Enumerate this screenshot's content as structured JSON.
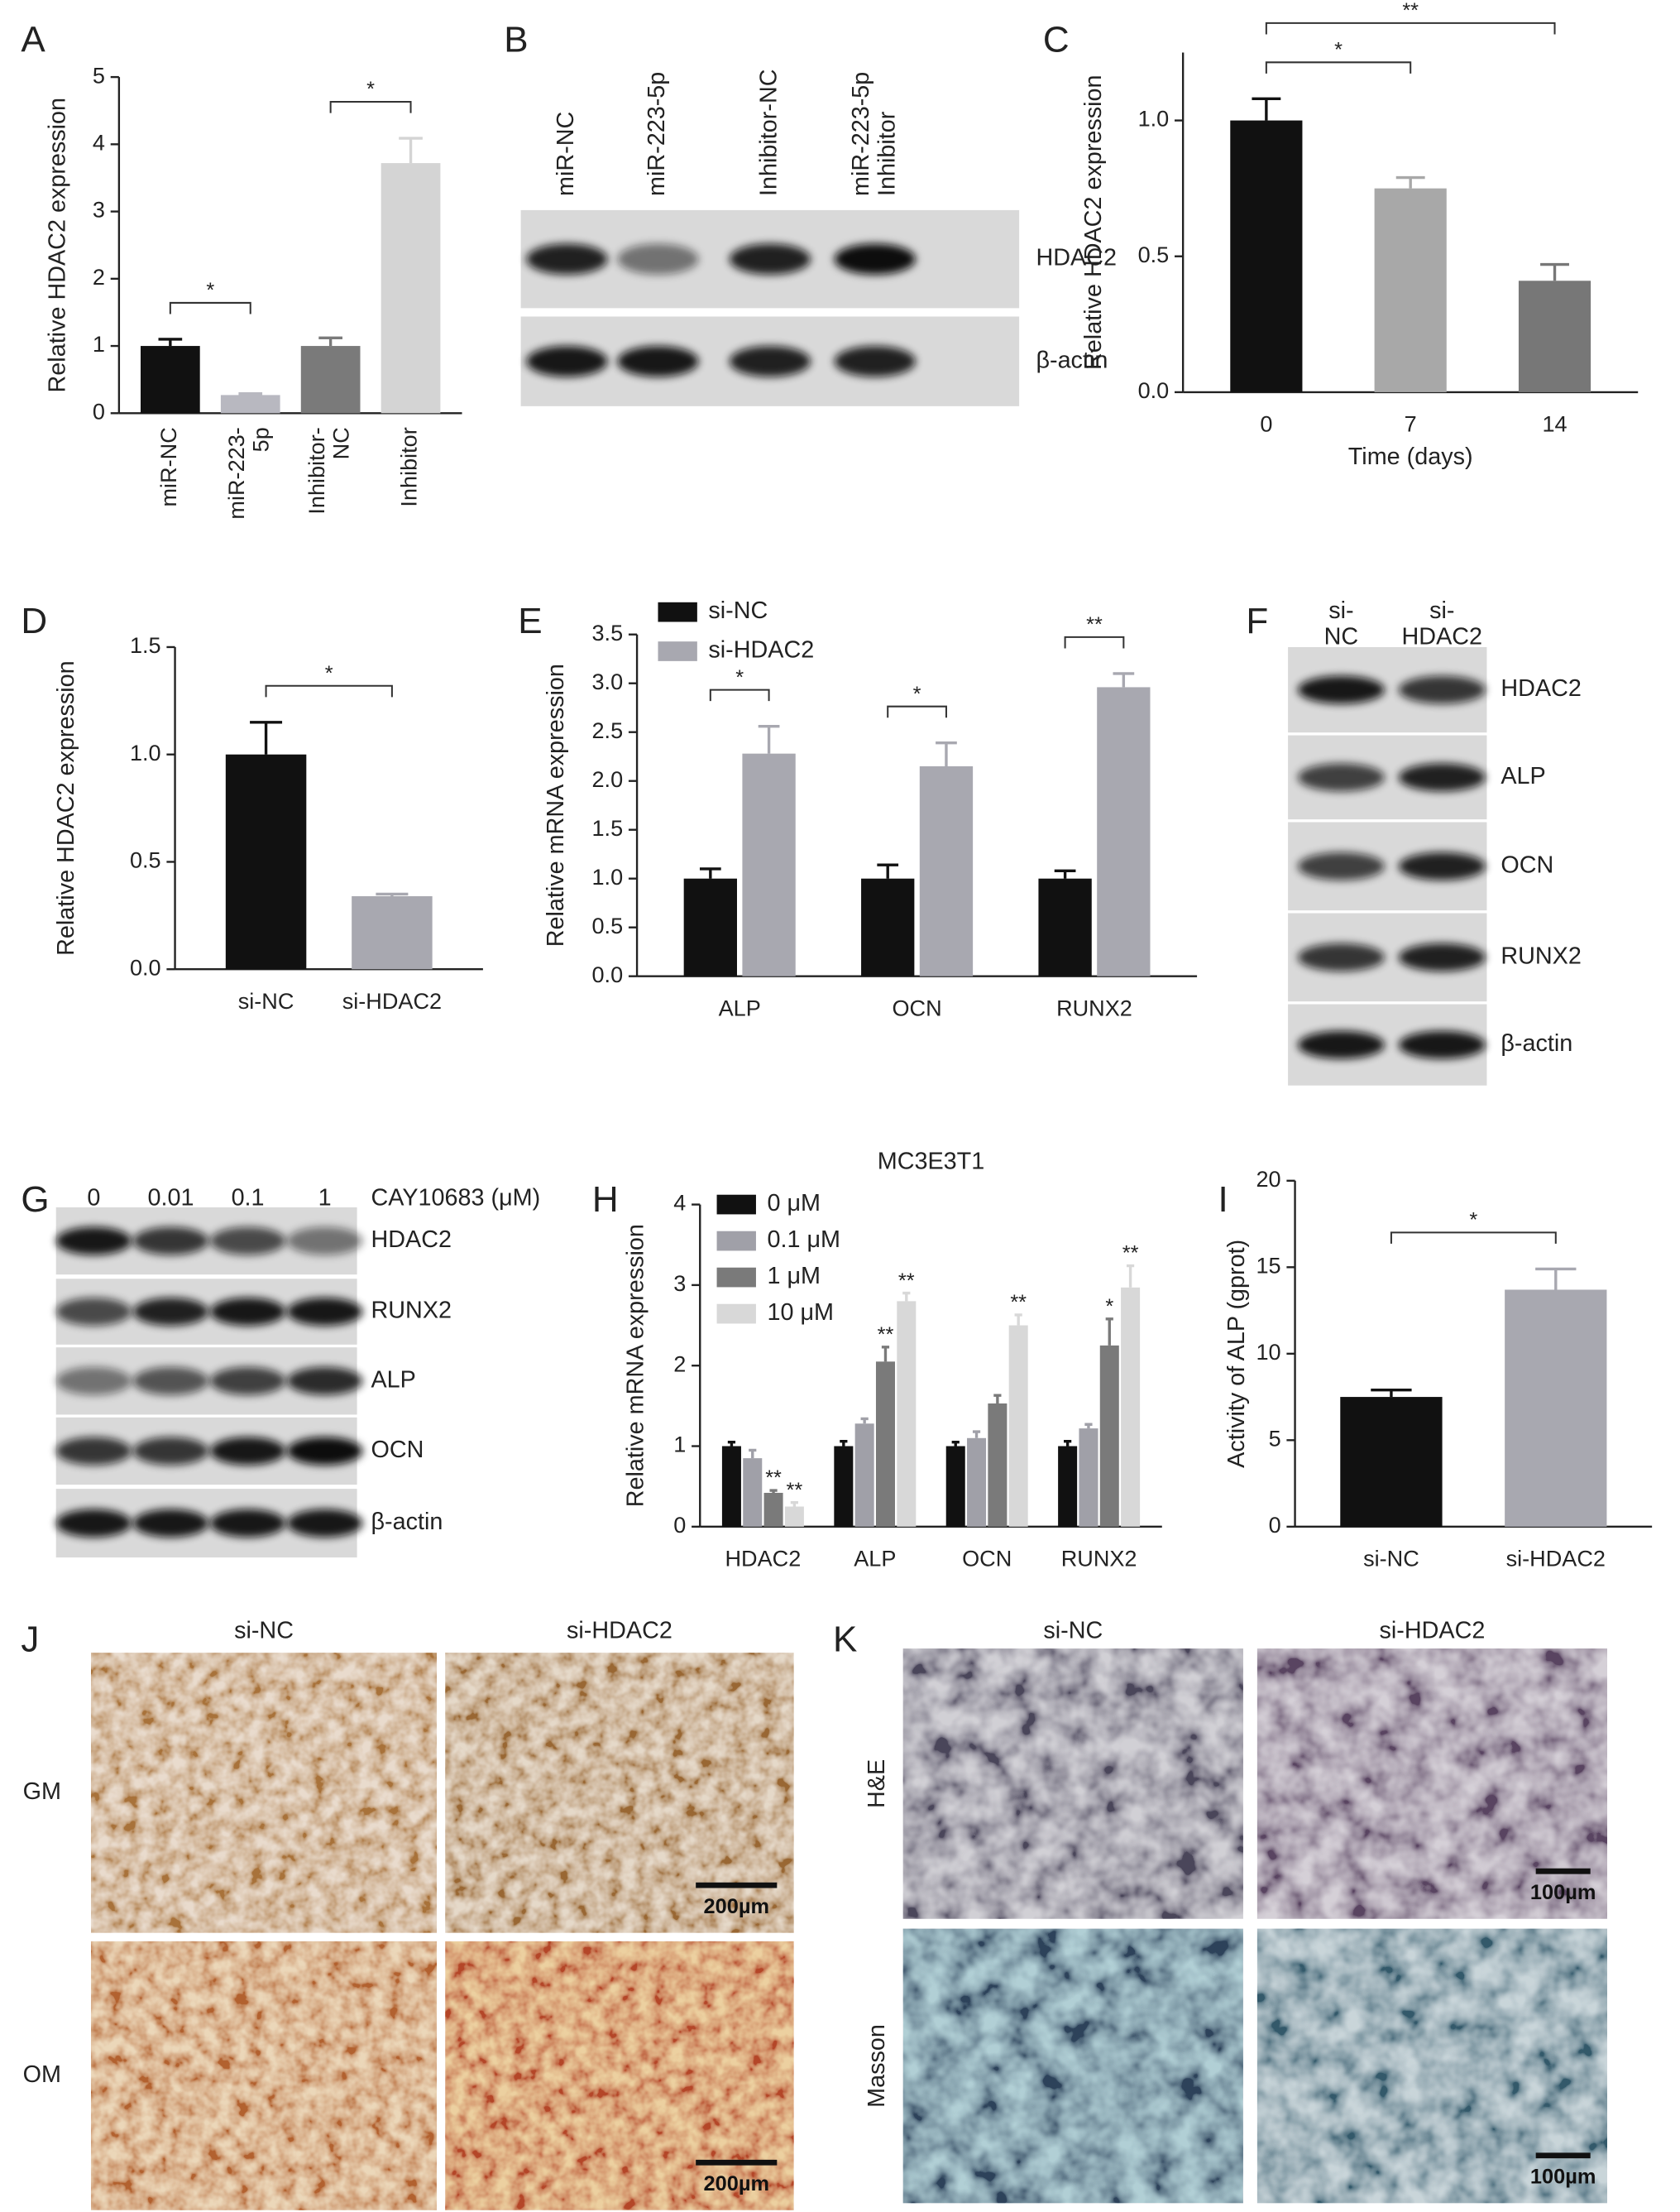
{
  "panel_labels": [
    "A",
    "B",
    "C",
    "D",
    "E",
    "F",
    "G",
    "H",
    "I",
    "J",
    "K"
  ],
  "chart_data": [
    {
      "type": "bar",
      "y_label": "Relative HDAC2 expression",
      "categories": [
        "miR-NC",
        "miR-223-\n5p",
        "Inhibitor-\nNC",
        "Inhibitor"
      ],
      "values": [
        1.0,
        0.27,
        1.0,
        3.72
      ],
      "errors": [
        0.1,
        0.02,
        0.12,
        0.37
      ],
      "colors": [
        "#111111",
        "#b8b8c0",
        "#7a7a7a",
        "#d4d4d4"
      ],
      "ylim": [
        0,
        5
      ],
      "yticks": [
        0,
        1,
        2,
        3,
        4,
        5
      ],
      "comparisons": [
        {
          "between": [
            0,
            1
          ],
          "label": "*"
        },
        {
          "between": [
            2,
            3
          ],
          "label": "*"
        }
      ]
    },
    {
      "type": "bar",
      "y_label": "Relative HDAC2 expression",
      "x_label": "Time (days)",
      "categories": [
        "0",
        "7",
        "14"
      ],
      "values": [
        1.0,
        0.75,
        0.41
      ],
      "errors": [
        0.08,
        0.04,
        0.06
      ],
      "colors": [
        "#111111",
        "#a8a8a8",
        "#777777"
      ],
      "ylim": [
        0,
        1.25
      ],
      "yticks": [
        {
          "value": 0,
          "label": "0.0"
        },
        {
          "value": 0.5,
          "label": "0.5"
        },
        {
          "value": 1,
          "label": "1.0"
        }
      ],
      "comparisons": [
        {
          "between": [
            0,
            1
          ],
          "label": "*"
        },
        {
          "between": [
            0,
            2
          ],
          "label": "**"
        }
      ]
    },
    {
      "type": "bar",
      "y_label": "Relative HDAC2 expression",
      "categories": [
        "si-NC",
        "si-HDAC2"
      ],
      "values": [
        1.0,
        0.34
      ],
      "errors": [
        0.15,
        0.01
      ],
      "colors": [
        "#111111",
        "#a8a8b0"
      ],
      "ylim": [
        0,
        1.5
      ],
      "yticks": [
        {
          "value": 0,
          "label": "0.0"
        },
        {
          "value": 0.5,
          "label": "0.5"
        },
        {
          "value": 1,
          "label": "1.0"
        },
        {
          "value": 1.5,
          "label": "1.5"
        }
      ],
      "comparisons": [
        {
          "between": [
            0,
            1
          ],
          "label": "*"
        }
      ]
    },
    {
      "type": "bar",
      "y_label": "Relative mRNA expression",
      "categories": [
        "ALP",
        "OCN",
        "RUNX2"
      ],
      "series": [
        {
          "name": "si-NC",
          "color": "#111111",
          "values": [
            1.0,
            1.0,
            1.0
          ],
          "errors": [
            0.1,
            0.14,
            0.08
          ]
        },
        {
          "name": "si-HDAC2",
          "color": "#a8a8b0",
          "values": [
            2.28,
            2.15,
            2.96
          ],
          "errors": [
            0.28,
            0.24,
            0.14
          ]
        }
      ],
      "ylim": [
        0,
        3.5
      ],
      "yticks": [
        {
          "value": 0,
          "label": "0.0"
        },
        {
          "value": 0.5,
          "label": "0.5"
        },
        {
          "value": 1,
          "label": "1.0"
        },
        {
          "value": 1.5,
          "label": "1.5"
        },
        {
          "value": 2,
          "label": "2.0"
        },
        {
          "value": 2.5,
          "label": "2.5"
        },
        {
          "value": 3,
          "label": "3.0"
        },
        {
          "value": 3.5,
          "label": "3.5"
        }
      ],
      "legend": "upper left",
      "comparisons": [
        {
          "category": 0,
          "label": "*"
        },
        {
          "category": 1,
          "label": "*"
        },
        {
          "category": 2,
          "label": "**"
        }
      ]
    },
    {
      "type": "bar",
      "title": "MC3E3T1",
      "y_label": "Relative mRNA expression",
      "categories": [
        "HDAC2",
        "ALP",
        "OCN",
        "RUNX2"
      ],
      "series": [
        {
          "name": "0 μM",
          "color": "#111111",
          "values": [
            1.0,
            1.0,
            1.0,
            1.0
          ],
          "errors": [
            0.05,
            0.06,
            0.05,
            0.06
          ],
          "significance": [
            null,
            null,
            null,
            null
          ]
        },
        {
          "name": "0.1 μM",
          "color": "#a0a0a8",
          "values": [
            0.85,
            1.28,
            1.1,
            1.22
          ],
          "errors": [
            0.1,
            0.06,
            0.08,
            0.05
          ],
          "significance": [
            null,
            null,
            null,
            null
          ]
        },
        {
          "name": "1 μM",
          "color": "#7a7a7a",
          "values": [
            0.42,
            2.05,
            1.53,
            2.25
          ],
          "errors": [
            0.03,
            0.18,
            0.1,
            0.33
          ],
          "significance": [
            "**",
            "**",
            null,
            "*"
          ]
        },
        {
          "name": "10 μM",
          "color": "#d8d8d8",
          "values": [
            0.25,
            2.8,
            2.5,
            2.97
          ],
          "errors": [
            0.05,
            0.1,
            0.13,
            0.27
          ],
          "significance": [
            "**",
            "**",
            "**",
            "**"
          ]
        }
      ],
      "ylim": [
        0,
        4
      ],
      "yticks": [
        0,
        1,
        2,
        3,
        4
      ],
      "legend": "upper left"
    },
    {
      "type": "bar",
      "y_label": "Activity of ALP (gprot)",
      "categories": [
        "si-NC",
        "si-HDAC2"
      ],
      "values": [
        7.5,
        13.7
      ],
      "errors": [
        0.4,
        1.2
      ],
      "colors": [
        "#111111",
        "#a8a8b0"
      ],
      "ylim": [
        0,
        20
      ],
      "yticks": [
        0,
        5,
        10,
        15,
        20
      ],
      "comparisons": [
        {
          "between": [
            0,
            1
          ],
          "label": "*"
        }
      ]
    }
  ],
  "blots": [
    {
      "lanes": [
        "miR-NC",
        "miR-223-5p",
        "Inhibitor-NC",
        "miR-223-5p\nInhibitor"
      ],
      "rows": [
        "HDAC2",
        "β-actin"
      ]
    },
    {
      "lanes": [
        "si-\nNC",
        "si-\nHDAC2"
      ],
      "rows": [
        "HDAC2",
        "ALP",
        "OCN",
        "RUNX2",
        "β-actin"
      ]
    },
    {
      "lanes": [
        "0",
        "0.01",
        "0.1",
        "1"
      ],
      "lane_unit": "CAY10683 (μM)",
      "rows": [
        "HDAC2",
        "RUNX2",
        "ALP",
        "OCN",
        "β-actin"
      ]
    }
  ],
  "micrographs": [
    {
      "columns": [
        "si-NC",
        "si-HDAC2"
      ],
      "rows": [
        "GM",
        "OM"
      ],
      "scale_bar": "200µm"
    },
    {
      "columns": [
        "si-NC",
        "si-HDAC2"
      ],
      "rows": [
        "H&E",
        "Masson"
      ],
      "scale_bar": "100µm"
    }
  ]
}
